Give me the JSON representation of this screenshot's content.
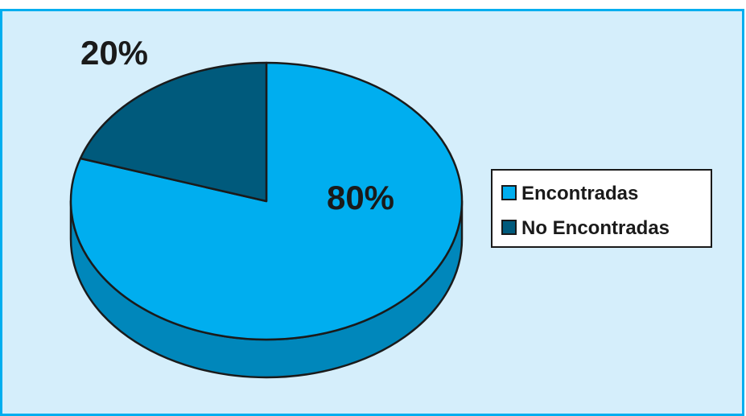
{
  "chart_data": {
    "type": "pie",
    "style": "3d",
    "title": "",
    "categories": [
      "Encontradas",
      "No Encontradas"
    ],
    "values": [
      80,
      20
    ],
    "labels": [
      "80%",
      "20%"
    ],
    "colors": {
      "Encontradas": "#00aeef",
      "No Encontradas": "#005a7c"
    },
    "side_colors": {
      "Encontradas": "#0087bb",
      "No Encontradas": "#003f58"
    },
    "legend": {
      "position": "right",
      "entries": [
        "Encontradas",
        "No Encontradas"
      ]
    },
    "grid": false
  },
  "theme": {
    "background": "#d5eefb",
    "border": "#00aeef",
    "outline": "#1a1a1a"
  }
}
